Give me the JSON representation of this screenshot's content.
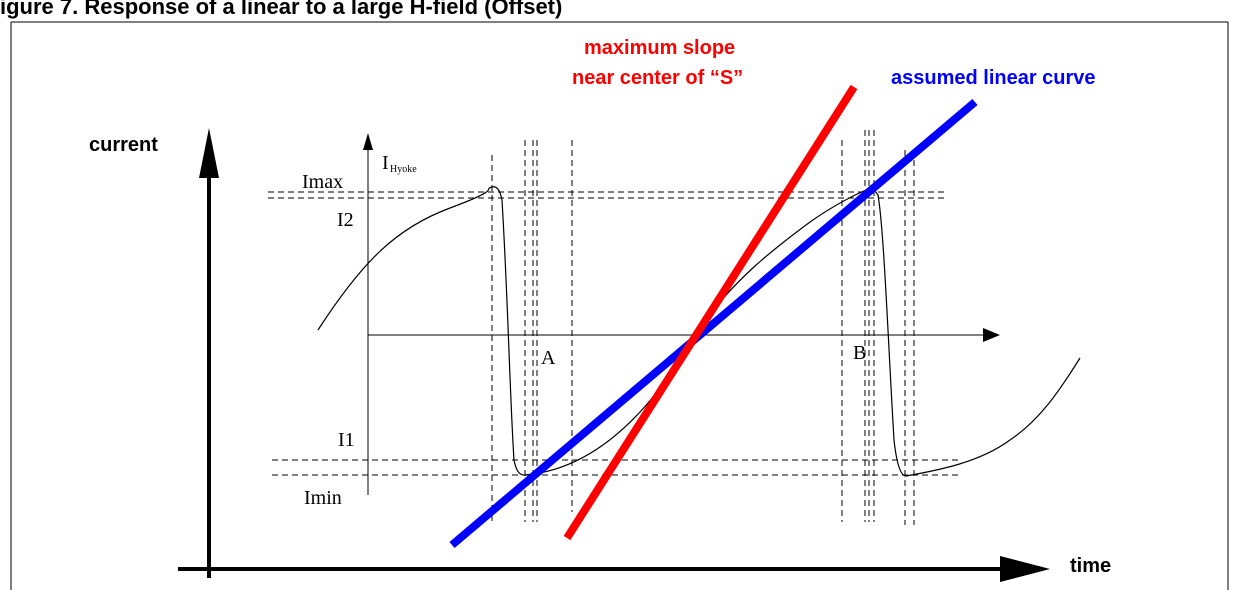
{
  "header": {
    "title": "igure 7. Response of a linear to a large H-field (Offset)"
  },
  "labels": {
    "current": "current",
    "time": "time",
    "imax": "Imax",
    "i2": "I2",
    "i1": "I1",
    "imin": "Imin",
    "i_main": "I",
    "i_sub": "Hyoke",
    "point_a": "A",
    "point_b": "B"
  },
  "annotations": {
    "max_slope_line1": "maximum slope",
    "max_slope_line2": "near center of “S”",
    "linear_curve": "assumed linear curve"
  },
  "colors": {
    "max_slope": "#ff0000",
    "linear_curve": "#0000ff",
    "signal": "#000000"
  }
}
